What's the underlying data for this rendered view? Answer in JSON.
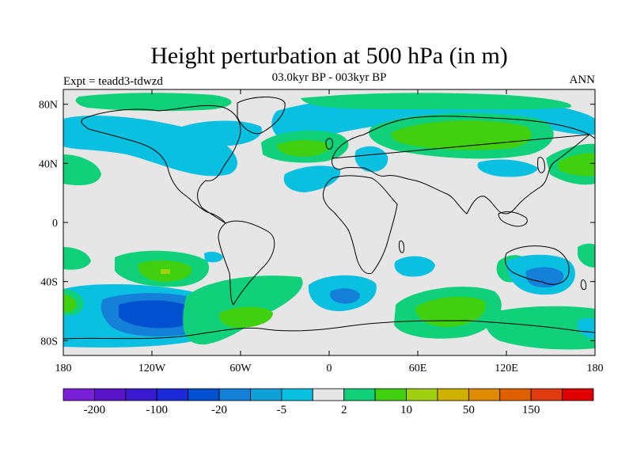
{
  "title": "Height perturbation at 500 hPa (in m)",
  "left_label": "Expt = teadd3-tdwzd",
  "center_label": "03.0kyr BP - 003kyr BP",
  "right_label": "ANN",
  "map": {
    "projection": "cylindrical-equidistant",
    "lon_range": [
      -180,
      180
    ],
    "lat_range": [
      -90,
      90
    ],
    "background_color": "#e6e6e6",
    "lat_ticks": [
      "80N",
      "40N",
      "0",
      "40S",
      "80S"
    ],
    "lon_ticks": [
      "180",
      "120W",
      "60W",
      "0",
      "60E",
      "120E",
      "180"
    ]
  },
  "colorbar": {
    "colors": [
      "#7a1fd8",
      "#5a14c8",
      "#3a1ad0",
      "#1a2ad8",
      "#0050d0",
      "#1480d8",
      "#0fa0d8",
      "#0ac0e0",
      "#e6e6e6",
      "#10d07a",
      "#40d010",
      "#a0d010",
      "#d0b000",
      "#e08a00",
      "#e06000",
      "#e03a10",
      "#e00000"
    ],
    "tick_labels": [
      "-200",
      "-100",
      "-20",
      "-5",
      "2",
      "10",
      "50",
      "150"
    ]
  },
  "colors": {
    "cyan": "#0ac0e0",
    "light_blue": "#1480d8",
    "blue": "#0050d0",
    "teal": "#10d07a",
    "green": "#40d010",
    "yellow_green": "#a0d010"
  }
}
